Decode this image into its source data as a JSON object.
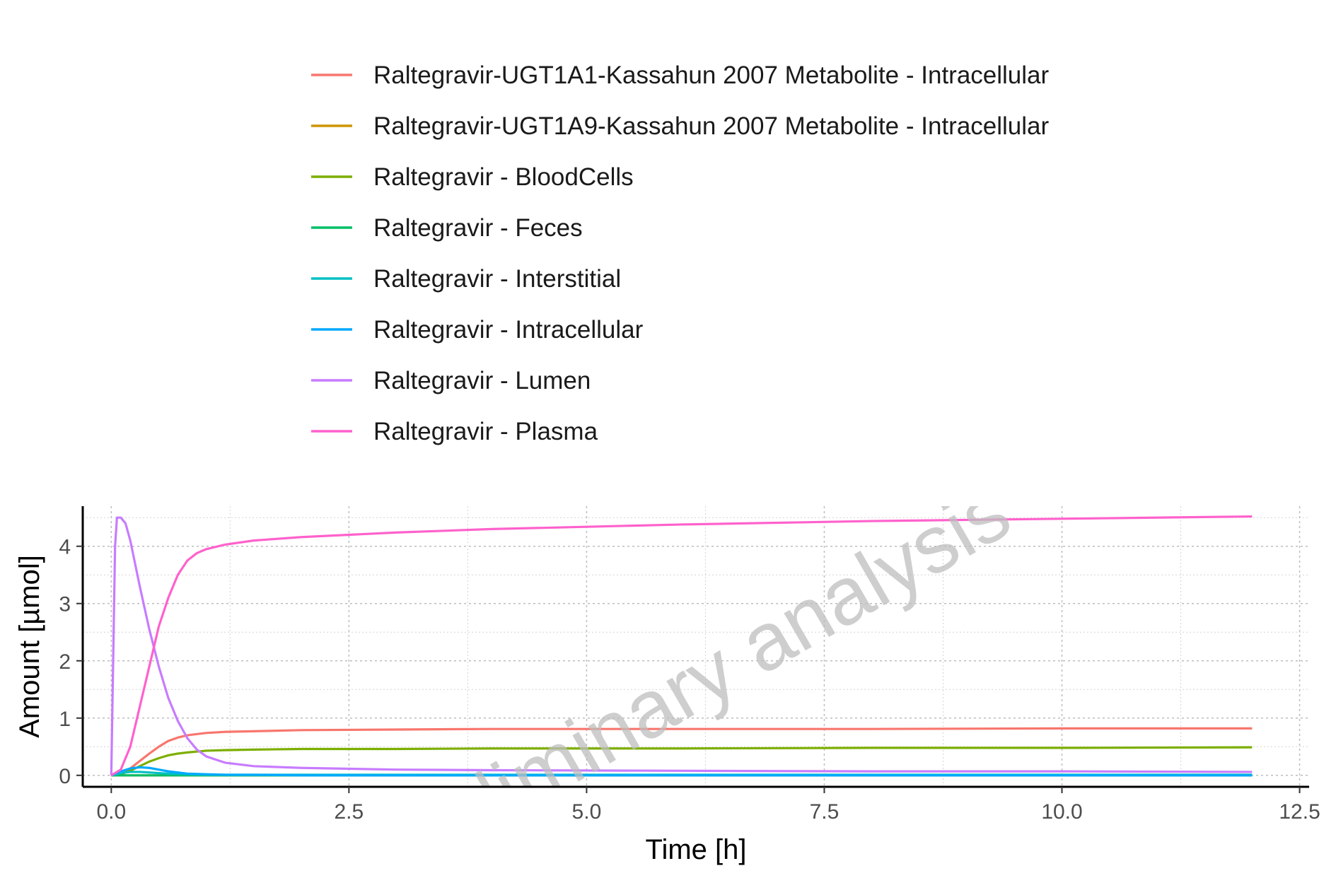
{
  "chart_data": {
    "type": "line",
    "title": "",
    "xlabel": "Time [h]",
    "ylabel": "Amount [µmol]",
    "xlim": [
      -0.3,
      12.6
    ],
    "ylim": [
      -0.2,
      4.7
    ],
    "x_ticks": [
      "0.0",
      "2.5",
      "5.0",
      "7.5",
      "10.0",
      "12.5"
    ],
    "y_ticks": [
      "0",
      "1",
      "2",
      "3",
      "4"
    ],
    "grid": true,
    "legend_position": "top",
    "watermark": "preliminary analysis",
    "series": [
      {
        "name": "Raltegravir-UGT1A1-Kassahun 2007 Metabolite - Intracellular",
        "color": "#F8766D",
        "x": [
          0,
          0.1,
          0.2,
          0.3,
          0.4,
          0.5,
          0.6,
          0.7,
          0.8,
          1.0,
          1.2,
          1.5,
          2.0,
          3.0,
          4.0,
          6.0,
          8.0,
          10.0,
          12.0
        ],
        "y": [
          0,
          0.03,
          0.12,
          0.25,
          0.38,
          0.5,
          0.6,
          0.66,
          0.7,
          0.74,
          0.76,
          0.77,
          0.79,
          0.8,
          0.81,
          0.81,
          0.81,
          0.82,
          0.82
        ]
      },
      {
        "name": "Raltegravir-UGT1A9-Kassahun 2007 Metabolite - Intracellular",
        "color": "#CD9600",
        "x": [
          0,
          12.0
        ],
        "y": [
          0,
          0
        ]
      },
      {
        "name": "Raltegravir - BloodCells",
        "color": "#7CAE00",
        "x": [
          0,
          0.1,
          0.2,
          0.3,
          0.4,
          0.5,
          0.6,
          0.7,
          0.8,
          1.0,
          1.2,
          1.5,
          2.0,
          3.0,
          4.0,
          6.0,
          8.0,
          10.0,
          12.0
        ],
        "y": [
          0,
          0.02,
          0.08,
          0.16,
          0.24,
          0.3,
          0.35,
          0.38,
          0.4,
          0.43,
          0.44,
          0.45,
          0.46,
          0.46,
          0.47,
          0.47,
          0.48,
          0.48,
          0.49
        ]
      },
      {
        "name": "Raltegravir - Feces",
        "color": "#00BE67",
        "x": [
          0,
          12.0
        ],
        "y": [
          0,
          0
        ]
      },
      {
        "name": "Raltegravir - Interstitial",
        "color": "#00BFC4",
        "x": [
          0,
          0.1,
          0.2,
          0.3,
          0.4,
          0.5,
          0.6,
          0.8,
          1.0,
          1.5,
          2.0,
          12.0
        ],
        "y": [
          0,
          0.04,
          0.06,
          0.06,
          0.05,
          0.04,
          0.03,
          0.02,
          0.01,
          0.01,
          0.01,
          0.01
        ]
      },
      {
        "name": "Raltegravir - Intracellular",
        "color": "#00A9FF",
        "x": [
          0,
          0.1,
          0.2,
          0.3,
          0.4,
          0.5,
          0.6,
          0.7,
          0.8,
          1.0,
          1.2,
          1.5,
          2.0,
          12.0
        ],
        "y": [
          0,
          0.07,
          0.12,
          0.14,
          0.13,
          0.1,
          0.07,
          0.05,
          0.03,
          0.02,
          0.01,
          0.01,
          0.0,
          0.0
        ]
      },
      {
        "name": "Raltegravir - Lumen",
        "color": "#C77CFF",
        "x": [
          0,
          0.02,
          0.04,
          0.06,
          0.1,
          0.15,
          0.2,
          0.3,
          0.4,
          0.5,
          0.6,
          0.7,
          0.8,
          0.9,
          1.0,
          1.2,
          1.5,
          2.0,
          3.0,
          4.0,
          6.0,
          8.0,
          10.0,
          12.0
        ],
        "y": [
          0,
          2.0,
          4.0,
          4.5,
          4.5,
          4.4,
          4.1,
          3.3,
          2.55,
          1.9,
          1.35,
          0.95,
          0.65,
          0.45,
          0.33,
          0.22,
          0.16,
          0.13,
          0.1,
          0.09,
          0.08,
          0.07,
          0.07,
          0.06
        ]
      },
      {
        "name": "Raltegravir - Plasma",
        "color": "#FF61CC",
        "x": [
          0,
          0.1,
          0.2,
          0.3,
          0.4,
          0.5,
          0.6,
          0.7,
          0.8,
          0.9,
          1.0,
          1.2,
          1.5,
          2.0,
          2.5,
          3.0,
          4.0,
          5.0,
          6.0,
          8.0,
          10.0,
          12.0
        ],
        "y": [
          0,
          0.1,
          0.5,
          1.2,
          1.9,
          2.6,
          3.1,
          3.5,
          3.75,
          3.88,
          3.95,
          4.03,
          4.1,
          4.16,
          4.2,
          4.24,
          4.3,
          4.34,
          4.38,
          4.44,
          4.48,
          4.52
        ]
      }
    ]
  }
}
